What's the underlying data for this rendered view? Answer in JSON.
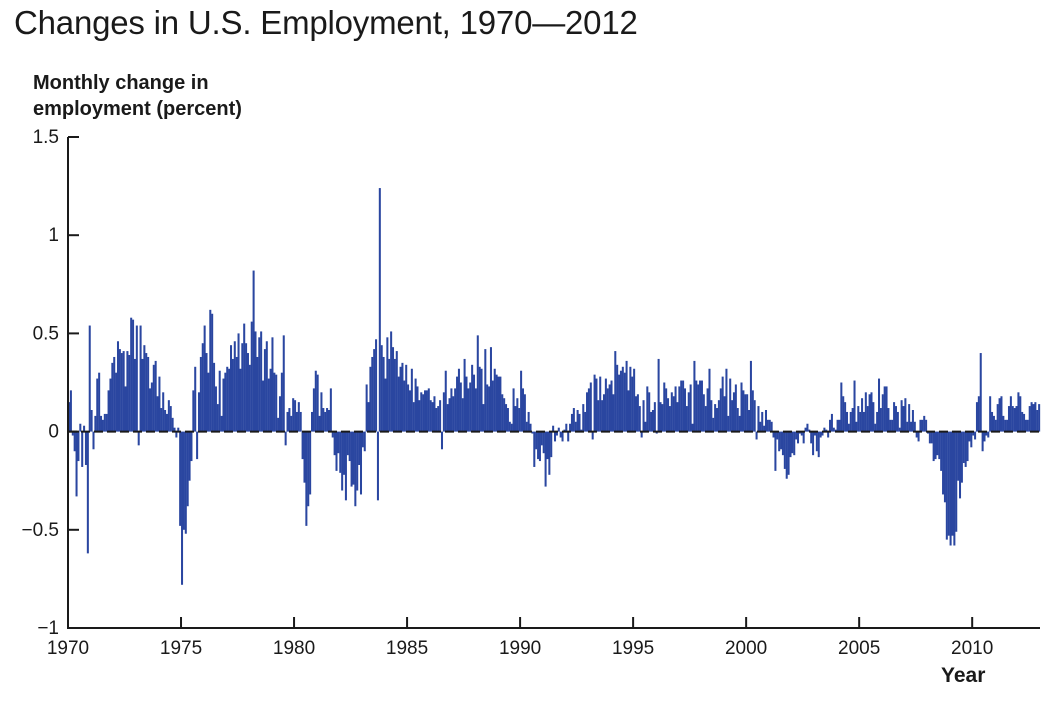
{
  "title": "Changes in U.S. Employment, 1970—2012",
  "colors": {
    "bar": "#2a46a0",
    "axis": "#1a1a1a",
    "zero_line": "#1a1a1a"
  },
  "chart_data": {
    "type": "bar",
    "title": "Changes in U.S. Employment, 1970—2012",
    "ylabel_lines": [
      "Monthly change in",
      "employment (percent)"
    ],
    "xlabel": "Year",
    "xlim": [
      1970,
      2013
    ],
    "ylim": [
      -1,
      1.5
    ],
    "y_ticks": [
      -1,
      -0.5,
      0,
      0.5,
      1,
      1.5
    ],
    "y_tick_labels": [
      "−1",
      "−0.5",
      "0",
      "0.5",
      "1",
      "1.5"
    ],
    "x_ticks": [
      1970,
      1975,
      1980,
      1985,
      1990,
      1995,
      2000,
      2005,
      2010
    ],
    "x_tick_labels": [
      "1970",
      "1975",
      "1980",
      "1985",
      "1990",
      "1995",
      "2000",
      "2005",
      "2010"
    ],
    "zero_line": "dashed",
    "grid": false,
    "frequency": "monthly",
    "x_start": "1970-01",
    "x_end": "2012-12",
    "series": [
      {
        "name": "",
        "yearly_monthly_values": {
          "1970": [
            0.15,
            0.21,
            -0.02,
            -0.1,
            -0.33,
            -0.15,
            0.04,
            -0.18,
            0.03,
            -0.17,
            -0.62,
            0.54
          ],
          "1971": [
            0.11,
            -0.09,
            0.08,
            0.27,
            0.3,
            0.08,
            0.06,
            0.09,
            0.09,
            0.21,
            0.27,
            0.35
          ],
          "1972": [
            0.38,
            0.3,
            0.46,
            0.42,
            0.4,
            0.41,
            0.23,
            0.41,
            0.39,
            0.58,
            0.57,
            0.37
          ],
          "1973": [
            0.54,
            -0.07,
            0.54,
            0.37,
            0.44,
            0.4,
            0.38,
            0.22,
            0.25,
            0.34,
            0.36,
            0.18
          ],
          "1974": [
            0.28,
            0.12,
            0.2,
            0.11,
            0.09,
            0.16,
            0.13,
            0.07,
            0.02,
            -0.03,
            0.02,
            -0.48
          ],
          "1975": [
            -0.78,
            -0.5,
            -0.52,
            -0.38,
            -0.25,
            -0.15,
            0.21,
            0.33,
            -0.14,
            0.2,
            0.38,
            0.45
          ],
          "1976": [
            0.54,
            0.4,
            0.3,
            0.62,
            0.6,
            0.35,
            0.23,
            0.14,
            0.31,
            0.08,
            0.27,
            0.3
          ],
          "1977": [
            0.33,
            0.32,
            0.44,
            0.37,
            0.46,
            0.38,
            0.5,
            0.32,
            0.45,
            0.55,
            0.45,
            0.4
          ],
          "1978": [
            0.34,
            0.56,
            0.82,
            0.51,
            0.38,
            0.48,
            0.51,
            0.26,
            0.42,
            0.46,
            0.27,
            0.32
          ],
          "1979": [
            0.48,
            0.3,
            0.29,
            0.07,
            0.18,
            0.3,
            0.49,
            -0.07,
            0.1,
            0.12,
            0.08,
            0.17
          ],
          "1980": [
            0.16,
            0.1,
            0.15,
            0.1,
            -0.14,
            -0.26,
            -0.48,
            -0.38,
            -0.32,
            0.1,
            0.22,
            0.31
          ],
          "1981": [
            0.29,
            0.08,
            0.2,
            0.12,
            0.1,
            0.12,
            0.11,
            0.22,
            -0.03,
            -0.12,
            -0.2,
            -0.11
          ],
          "1982": [
            -0.21,
            -0.3,
            -0.22,
            -0.35,
            -0.12,
            -0.15,
            -0.28,
            -0.27,
            -0.38,
            -0.3,
            -0.17,
            -0.32
          ],
          "1983": [
            -0.08,
            -0.1,
            0.24,
            0.15,
            0.33,
            0.38,
            0.42,
            0.47,
            -0.35,
            1.24,
            0.44,
            0.38
          ],
          "1984": [
            0.27,
            0.48,
            0.37,
            0.51,
            0.43,
            0.37,
            0.41,
            0.28,
            0.33,
            0.35,
            0.26,
            0.34
          ],
          "1985": [
            0.24,
            0.21,
            0.32,
            0.15,
            0.27,
            0.23,
            0.16,
            0.2,
            0.19,
            0.21,
            0.21,
            0.22
          ],
          "1986": [
            0.16,
            0.15,
            0.18,
            0.12,
            0.13,
            0.16,
            -0.09,
            0.2,
            0.31,
            0.14,
            0.17,
            0.22
          ],
          "1987": [
            0.18,
            0.22,
            0.28,
            0.32,
            0.25,
            0.17,
            0.37,
            0.28,
            0.22,
            0.25,
            0.34,
            0.29
          ],
          "1988": [
            0.22,
            0.49,
            0.33,
            0.32,
            0.14,
            0.42,
            0.24,
            0.23,
            0.43,
            0.26,
            0.32,
            0.29
          ],
          "1989": [
            0.28,
            0.28,
            0.19,
            0.17,
            0.14,
            0.12,
            0.05,
            0.04,
            0.22,
            0.13,
            0.17,
            0.12
          ],
          "1990": [
            0.31,
            0.22,
            0.19,
            0.05,
            0.1,
            0.04,
            -0.01,
            -0.18,
            -0.09,
            -0.14,
            -0.15,
            -0.07
          ],
          "1991": [
            -0.11,
            -0.28,
            -0.14,
            -0.22,
            -0.13,
            0.03,
            -0.05,
            -0.02,
            0.02,
            -0.03,
            -0.05,
            0.01
          ],
          "1992": [
            0.04,
            -0.05,
            0.04,
            0.09,
            0.12,
            0.05,
            0.11,
            0.09,
            0.01,
            0.14,
            0.1,
            0.2
          ],
          "1993": [
            0.22,
            0.25,
            -0.04,
            0.29,
            0.27,
            0.16,
            0.28,
            0.16,
            0.19,
            0.27,
            0.22,
            0.24
          ],
          "1994": [
            0.26,
            0.19,
            0.41,
            0.34,
            0.29,
            0.31,
            0.33,
            0.3,
            0.36,
            0.21,
            0.33,
            0.28
          ],
          "1995": [
            0.32,
            0.18,
            0.19,
            0.13,
            -0.03,
            0.16,
            0.05,
            0.23,
            0.2,
            0.1,
            0.11,
            0.15
          ],
          "1996": [
            -0.01,
            0.37,
            0.15,
            0.14,
            0.25,
            0.22,
            0.17,
            0.13,
            0.2,
            0.18,
            0.23,
            0.15
          ],
          "1997": [
            0.23,
            0.26,
            0.26,
            0.22,
            0.13,
            0.2,
            0.24,
            0.04,
            0.36,
            0.26,
            0.24,
            0.26
          ],
          "1998": [
            0.26,
            0.19,
            0.13,
            0.22,
            0.32,
            0.16,
            0.07,
            0.14,
            0.12,
            0.16,
            0.22,
            0.28
          ],
          "1999": [
            0.18,
            0.32,
            0.08,
            0.27,
            0.16,
            0.2,
            0.24,
            0.12,
            0.08,
            0.25,
            0.21,
            0.19
          ],
          "2000": [
            0.19,
            0.11,
            0.36,
            0.21,
            0.16,
            -0.04,
            0.13,
            0.05,
            0.1,
            0.03,
            0.11,
            0.06
          ],
          "2001": [
            0.06,
            0.05,
            -0.03,
            -0.2,
            -0.04,
            -0.1,
            -0.09,
            -0.12,
            -0.19,
            -0.24,
            -0.22,
            -0.13
          ],
          "2002": [
            -0.11,
            -0.12,
            -0.04,
            -0.06,
            -0.01,
            -0.02,
            -0.06,
            0.02,
            0.04,
            0.01,
            -0.06,
            -0.12
          ],
          "2003": [
            -0.02,
            -0.1,
            -0.13,
            -0.03,
            -0.02,
            0.02,
            0.01,
            -0.03,
            0.06,
            0.09,
            0.02,
            0.01
          ],
          "2004": [
            0.06,
            0.06,
            0.25,
            0.18,
            0.15,
            0.1,
            0.04,
            0.1,
            0.12,
            0.26,
            0.05,
            0.13
          ],
          "2005": [
            0.1,
            0.17,
            0.1,
            0.2,
            0.13,
            0.19,
            0.2,
            0.15,
            0.04,
            0.1,
            0.27,
            0.12
          ],
          "2006": [
            0.19,
            0.23,
            0.23,
            0.12,
            0.06,
            0.06,
            0.15,
            0.13,
            0.1,
            0.02,
            0.16,
            0.13
          ],
          "2007": [
            0.17,
            0.05,
            0.14,
            0.05,
            0.11,
            0.05,
            -0.03,
            -0.05,
            0.06,
            0.06,
            0.08,
            0.06
          ],
          "2008": [
            -0.01,
            -0.06,
            -0.06,
            -0.15,
            -0.14,
            -0.12,
            -0.14,
            -0.2,
            -0.32,
            -0.36,
            -0.55,
            -0.53
          ],
          "2009": [
            -0.58,
            -0.53,
            -0.58,
            -0.51,
            -0.25,
            -0.34,
            -0.26,
            -0.16,
            -0.18,
            -0.15,
            -0.05,
            -0.08
          ],
          "2010": [
            -0.02,
            -0.04,
            0.15,
            0.18,
            0.4,
            -0.1,
            -0.05,
            -0.02,
            -0.03,
            0.18,
            0.1,
            0.08
          ],
          "2011": [
            0.06,
            0.14,
            0.17,
            0.18,
            0.08,
            0.06,
            0.06,
            0.13,
            0.18,
            0.13,
            0.12,
            0.13
          ],
          "2012": [
            0.2,
            0.18,
            0.1,
            0.09,
            0.06,
            0.06,
            0.13,
            0.15,
            0.14,
            0.15,
            0.11,
            0.14
          ]
        }
      }
    ]
  }
}
